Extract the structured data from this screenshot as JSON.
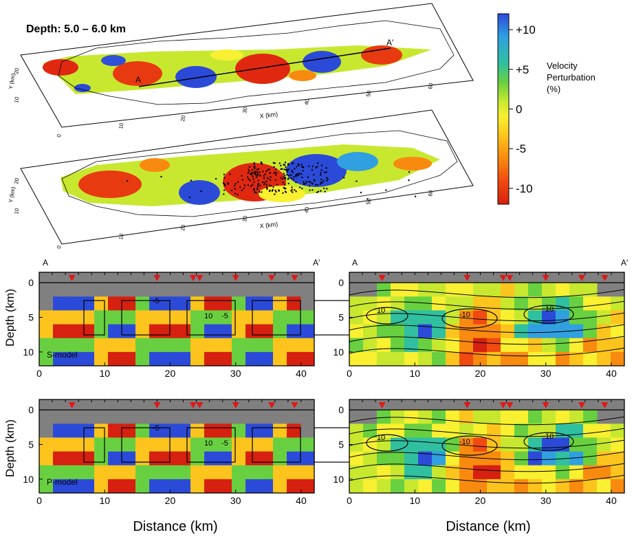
{
  "figure": {
    "depth_title": "Depth: 5.0 – 6.0 km",
    "section_start_label": "A",
    "section_end_label": "A′"
  },
  "colorbar": {
    "title_lines": [
      "Velocity",
      "Perturbation",
      "(%)"
    ],
    "tick_labels": [
      "+10",
      "+5",
      "0",
      "-5",
      "-10"
    ],
    "tick_values": [
      10,
      5,
      0,
      -5,
      -10
    ],
    "range": [
      -12,
      12
    ],
    "colors": [
      "#d62010",
      "#f04a10",
      "#f88a10",
      "#fcc41c",
      "#f8f030",
      "#c8e830",
      "#68d040",
      "#30c0a0",
      "#30a0e0",
      "#2c4ad8"
    ]
  },
  "chart_data": [
    {
      "type": "heatmap",
      "panel": "map-top",
      "xlabel": "X (km)",
      "ylabel": "Y (km)",
      "x_ticks": [
        0,
        10,
        20,
        30,
        40,
        50,
        60
      ],
      "y_ticks": [
        10,
        20
      ],
      "profile_endpoints": [
        "A",
        "A′"
      ],
      "cells": [
        {
          "x": 2,
          "y": 20,
          "value": -8
        },
        {
          "x": 7,
          "y": 16,
          "value": -9
        },
        {
          "x": 10,
          "y": 21,
          "value": 9
        },
        {
          "x": 16,
          "y": 14,
          "value": -10
        },
        {
          "x": 22,
          "y": 18,
          "value": 10
        },
        {
          "x": 31,
          "y": 20,
          "value": -11
        },
        {
          "x": 43,
          "y": 22,
          "value": 10
        },
        {
          "x": 55,
          "y": 24,
          "value": -9
        },
        {
          "x": 4,
          "y": 12,
          "value": 8
        }
      ]
    },
    {
      "type": "scatter",
      "panel": "map-bottom",
      "xlabel": "X (km)",
      "ylabel": "Y (km)",
      "x_ticks": [
        0,
        10,
        20,
        30,
        40,
        50,
        60
      ],
      "y_ticks": [
        10,
        20
      ],
      "note": "recovered model with earthquake hypocenters (dots) clustered near X≈38–45 km"
    },
    {
      "type": "heatmap",
      "panel": "section-S-checkerboard",
      "model_label": "S-model",
      "xlabel": "Distance (km)",
      "ylabel": "Depth (km)",
      "x_ticks": [
        0,
        10,
        20,
        30,
        40
      ],
      "y_ticks": [
        0,
        5,
        10
      ],
      "xlim": [
        0,
        42
      ],
      "ylim": [
        12,
        -1.5
      ],
      "contour_labels": [
        "-5",
        "-5",
        "10"
      ],
      "station_distances_km": [
        5,
        18,
        23.5,
        24.5,
        30,
        35.5,
        39
      ]
    },
    {
      "type": "heatmap",
      "panel": "section-S-recovered",
      "xlabel": "Distance (km)",
      "ylabel": "Depth (km)",
      "x_ticks": [
        0,
        10,
        20,
        30,
        40
      ],
      "y_ticks": [
        0,
        5,
        10
      ],
      "xlim": [
        0,
        42
      ],
      "ylim": [
        12,
        -1.5
      ],
      "contour_labels": [
        "10",
        "-10",
        "10"
      ],
      "station_distances_km": [
        5,
        18,
        23.5,
        24.5,
        30,
        35.5,
        39
      ]
    },
    {
      "type": "heatmap",
      "panel": "section-P-checkerboard",
      "model_label": "P-model",
      "xlabel": "Distance (km)",
      "ylabel": "Depth (km)",
      "x_ticks": [
        0,
        10,
        20,
        30,
        40
      ],
      "y_ticks": [
        0,
        5,
        10
      ],
      "xlim": [
        0,
        42
      ],
      "ylim": [
        12,
        -1.5
      ],
      "contour_labels": [
        "-5",
        "-5",
        "10"
      ],
      "station_distances_km": [
        5,
        18,
        23.5,
        24.5,
        30,
        35.5,
        39
      ]
    },
    {
      "type": "heatmap",
      "panel": "section-P-recovered",
      "xlabel": "Distance (km)",
      "ylabel": "Depth (km)",
      "x_ticks": [
        0,
        10,
        20,
        30,
        40
      ],
      "y_ticks": [
        0,
        5,
        10
      ],
      "xlim": [
        0,
        42
      ],
      "ylim": [
        12,
        -1.5
      ],
      "contour_labels": [
        "10",
        "-10",
        "10"
      ],
      "station_distances_km": [
        5,
        18,
        23.5,
        24.5,
        30,
        35.5,
        39
      ]
    }
  ]
}
